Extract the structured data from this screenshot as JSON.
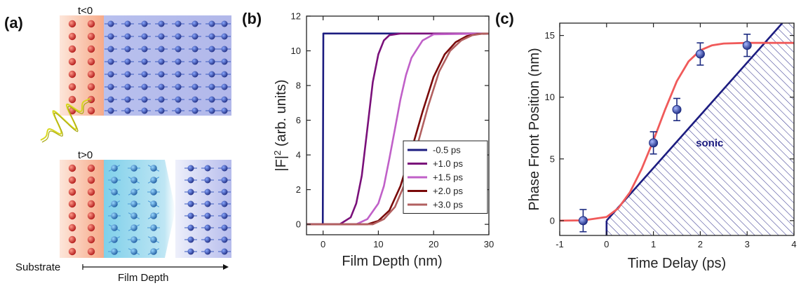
{
  "panels": {
    "a": {
      "label": "(a)"
    },
    "b": {
      "label": "(b)"
    },
    "c": {
      "label": "(c)"
    }
  },
  "schematic": {
    "top_label": "t<0",
    "bottom_label": "t>0",
    "substrate_label": "Substrate",
    "depth_label": "Film Depth",
    "colors": {
      "substrate_atom": "#d32f2f",
      "substrate_glow": "#f8b89a",
      "film_top": "#8a9be0",
      "film_excited": "#5bbfe0",
      "film_atom": "#2a4a9a",
      "pulse": "#d8d820"
    }
  },
  "chart_data": [
    {
      "type": "line",
      "xlabel": "Film Depth (nm)",
      "ylabel": "|F|",
      "ylabel_sup": "2",
      "ylabel_rest": " (arb. units)",
      "xlim": [
        -3,
        30
      ],
      "ylim": [
        -0.6,
        12
      ],
      "xticks": [
        0,
        10,
        20,
        30
      ],
      "yticks": [
        0,
        2,
        4,
        6,
        8,
        10,
        12
      ],
      "legend_position": "bottom-right",
      "series": [
        {
          "name": "-0.5 ps",
          "color": "#1c1c80",
          "x": [
            -3,
            -0.05,
            0,
            0.05,
            30
          ],
          "y": [
            0,
            0,
            5.5,
            11,
            11
          ]
        },
        {
          "name": "+1.0 ps",
          "color": "#7a107a",
          "x": [
            -3,
            3,
            5,
            6,
            7,
            8,
            9,
            10,
            11,
            12,
            14,
            30
          ],
          "y": [
            0,
            0,
            0.4,
            1.2,
            2.8,
            5.5,
            8.2,
            9.8,
            10.6,
            10.9,
            11,
            11
          ]
        },
        {
          "name": "+1.5 ps",
          "color": "#c060c8",
          "x": [
            -3,
            6,
            8,
            10,
            11,
            12,
            13,
            14,
            15,
            16,
            18,
            20,
            30
          ],
          "y": [
            0,
            0,
            0.3,
            1.2,
            2.2,
            3.8,
            5.5,
            7.2,
            8.6,
            9.6,
            10.6,
            10.95,
            11
          ]
        },
        {
          "name": "+2.0 ps",
          "color": "#7a0a0a",
          "x": [
            -3,
            8,
            10,
            12,
            14,
            16,
            18,
            20,
            22,
            24,
            26,
            28,
            30
          ],
          "y": [
            0,
            0,
            0.2,
            0.8,
            2.2,
            4.3,
            6.5,
            8.5,
            9.8,
            10.5,
            10.85,
            10.97,
            11
          ]
        },
        {
          "name": "+3.0 ps",
          "color": "#b26060",
          "x": [
            -3,
            9,
            11,
            13,
            15,
            17,
            19,
            21,
            23,
            25,
            27,
            29,
            30
          ],
          "y": [
            0,
            0,
            0.3,
            1.0,
            2.5,
            4.5,
            6.8,
            8.8,
            10.0,
            10.6,
            10.9,
            11,
            11
          ]
        }
      ]
    },
    {
      "type": "line",
      "xlabel": "Time Delay (ps)",
      "ylabel": "Phase Front Position (nm)",
      "xlim": [
        -1,
        4
      ],
      "ylim": [
        -1.2,
        16
      ],
      "xticks": [
        -1,
        0,
        1,
        2,
        3,
        4
      ],
      "yticks": [
        0,
        5,
        10,
        15
      ],
      "annotation": "sonic",
      "fit": {
        "color": "#f05a5a",
        "x": [
          -1,
          -0.5,
          0,
          0.25,
          0.5,
          0.75,
          1.0,
          1.25,
          1.5,
          1.75,
          2.0,
          2.25,
          2.5,
          3.0,
          3.5,
          4.0
        ],
        "y": [
          0,
          0.02,
          0.3,
          1.0,
          2.3,
          4.2,
          6.5,
          9.0,
          11.3,
          12.9,
          13.8,
          14.2,
          14.35,
          14.4,
          14.4,
          14.4
        ]
      },
      "sonic_line": {
        "color": "#1c1c80",
        "x": [
          0,
          3.75
        ],
        "y": [
          0,
          16
        ]
      },
      "points": [
        {
          "x": -0.5,
          "y": 0.0,
          "err": 0.9
        },
        {
          "x": 1.0,
          "y": 6.3,
          "err": 0.9
        },
        {
          "x": 1.5,
          "y": 9.0,
          "err": 0.9
        },
        {
          "x": 2.0,
          "y": 13.5,
          "err": 0.9
        },
        {
          "x": 3.0,
          "y": 14.2,
          "err": 0.9
        }
      ],
      "point_color": "#1c2a80"
    }
  ]
}
